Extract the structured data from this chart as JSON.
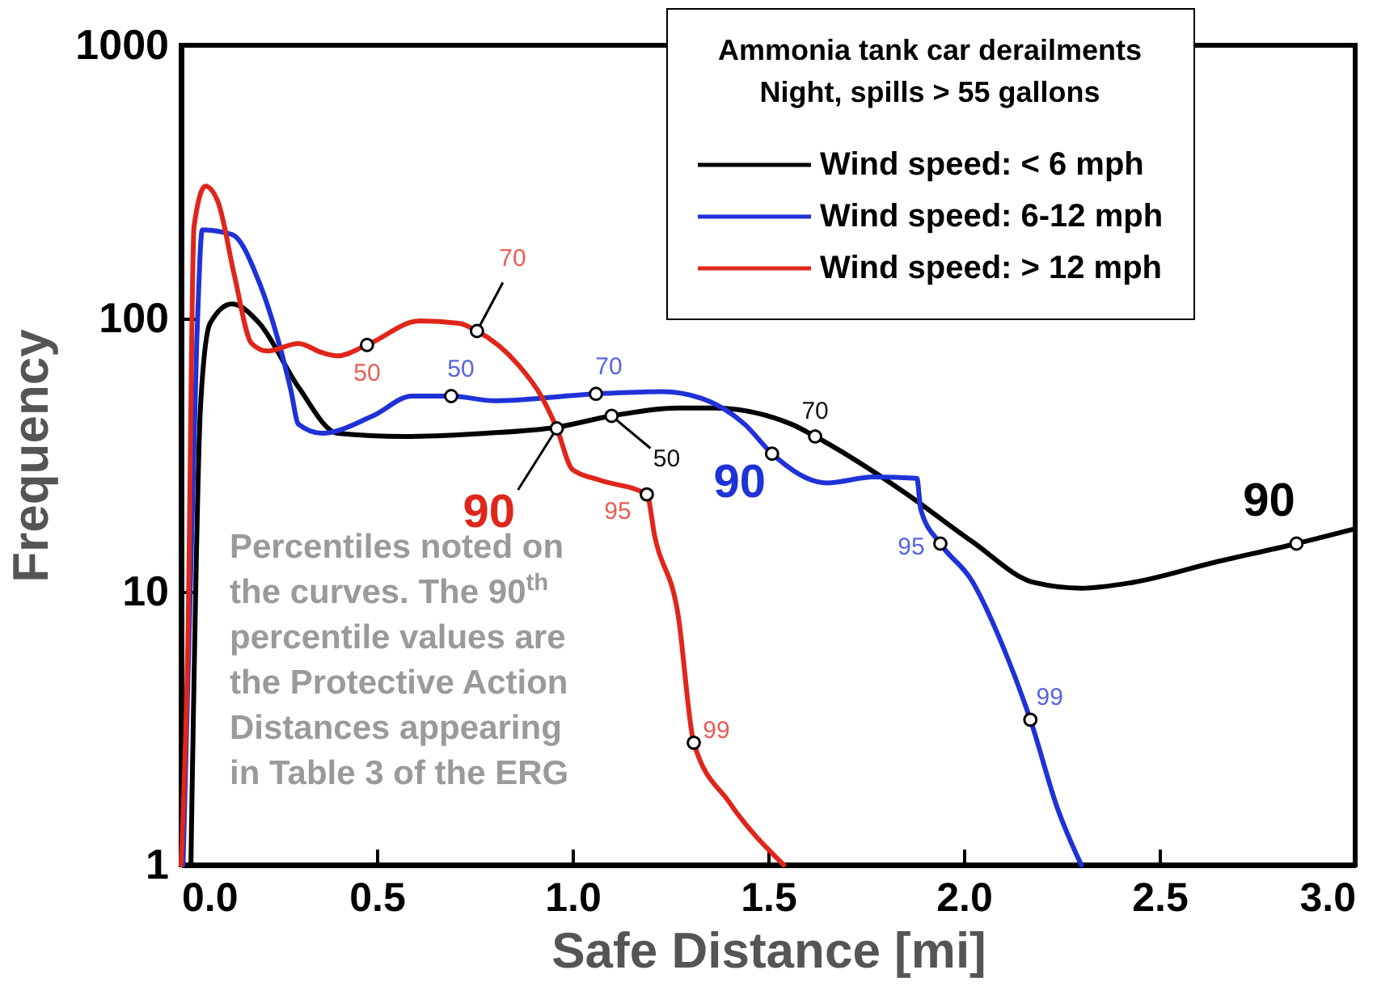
{
  "chart_data": {
    "type": "line",
    "xlabel": "Safe Distance [mi]",
    "ylabel": "Frequency",
    "legend_title": "Ammonia tank car derailments\nNight, spills > 55 gallons",
    "legend": "top right",
    "log": true,
    "grid": false,
    "line_style": "solid",
    "marker": "none",
    "xlim": [
      0,
      3
    ],
    "xticks": [
      {
        "value": 0,
        "label": "0.0"
      },
      0.5,
      {
        "value": 1,
        "label": "1.0"
      },
      1.5,
      {
        "value": 2,
        "label": "2.0"
      },
      2.5,
      {
        "value": 3,
        "label": "3.0"
      }
    ],
    "ylim": [
      1,
      1000
    ],
    "yticks": [
      1,
      10,
      100,
      1000
    ],
    "series": [
      {
        "name": "Wind speed: < 6 mph",
        "color": "#000000",
        "x": [
          0.025,
          0.05,
          0.074,
          0.13,
          0.2,
          0.3,
          0.4,
          0.57,
          0.78,
          0.96,
          1.1,
          1.27,
          1.36,
          1.56,
          1.62,
          1.85,
          2.02,
          2.18,
          2.3,
          2.43,
          2.64,
          2.85,
          3.0
        ],
        "values": [
          1,
          49,
          96,
          113,
          96,
          56,
          38,
          37,
          38,
          40,
          44,
          47,
          47,
          41,
          37,
          23,
          15.3,
          10.8,
          10.3,
          10.8,
          12.8,
          15,
          17
        ]
      },
      {
        "name": "Wind speed: 6-12 mph",
        "color": "#1f32d8",
        "x": [
          0.005,
          0.04,
          0.054,
          0.13,
          0.2,
          0.28,
          0.3,
          0.36,
          0.49,
          0.59,
          0.69,
          0.8,
          1.06,
          1.23,
          1.33,
          1.44,
          1.51,
          1.65,
          1.77,
          1.88,
          1.89,
          1.94,
          2.02,
          2.1,
          2.17,
          2.24,
          2.3
        ],
        "values": [
          1,
          83,
          211,
          203,
          135,
          55,
          41,
          38,
          44,
          52,
          52,
          50,
          53,
          54,
          51,
          41,
          32,
          25,
          26.3,
          26,
          20,
          15,
          11,
          6.3,
          3.4,
          1.6,
          1
        ]
      },
      {
        "name": "Wind speed: > 12 mph",
        "color": "#e0261b",
        "x": [
          0.0,
          0.017,
          0.033,
          0.062,
          0.095,
          0.136,
          0.18,
          0.22,
          0.3,
          0.36,
          0.4,
          0.475,
          0.61,
          0.71,
          0.756,
          0.86,
          0.92,
          0.96,
          1.0,
          1.07,
          1.19,
          1.21,
          1.27,
          1.31,
          1.4,
          1.54
        ],
        "values": [
          1,
          6.3,
          217,
          305,
          265,
          144,
          81,
          76,
          81,
          75,
          73,
          80,
          98,
          96,
          90,
          68,
          52,
          39.6,
          28,
          25.6,
          22.7,
          16,
          8.2,
          2.8,
          1.7,
          1
        ]
      }
    ],
    "annotations": [
      {
        "text": "50",
        "x": 1.1,
        "y": 44
      },
      {
        "text": "70",
        "x": 1.62,
        "y": 37
      },
      {
        "text": "90",
        "x": 2.85,
        "y": 15
      },
      {
        "text": "50",
        "x": 0.69,
        "y": 52
      },
      {
        "text": "70",
        "x": 1.06,
        "y": 53
      },
      {
        "text": "90",
        "x": 1.51,
        "y": 32
      },
      {
        "text": "95",
        "x": 1.94,
        "y": 15
      },
      {
        "text": "99",
        "x": 2.17,
        "y": 3.4
      },
      {
        "text": "50",
        "x": 0.475,
        "y": 80
      },
      {
        "text": "70",
        "x": 0.756,
        "y": 90
      },
      {
        "text": "90",
        "x": 0.96,
        "y": 39.6
      },
      {
        "text": "95",
        "x": 1.19,
        "y": 22.7
      },
      {
        "text": "99",
        "x": 1.31,
        "y": 2.8
      },
      "Percentiles noted on\nthe curves. The 90$^{th}$\npercentile values are\nthe Protective Action\nDistances appearing\nin Table 3 of the ERG"
    ]
  }
}
